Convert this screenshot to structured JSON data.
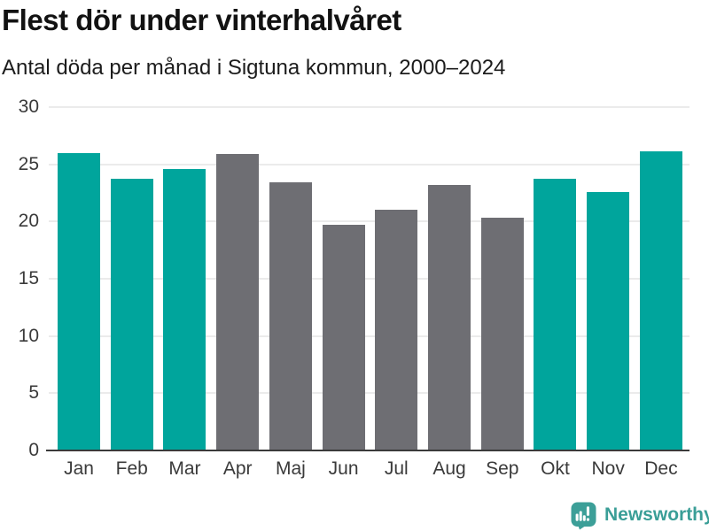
{
  "header": {
    "title": "Flest dör under vinterhalvåret",
    "subtitle": "Antal döda per månad i Sigtuna kommun, 2000–2024"
  },
  "chart_data": {
    "type": "bar",
    "title": "Flest dör under vinterhalvåret",
    "subtitle": "Antal döda per månad i Sigtuna kommun, 2000–2024",
    "categories": [
      "Jan",
      "Feb",
      "Mar",
      "Apr",
      "Maj",
      "Jun",
      "Jul",
      "Aug",
      "Sep",
      "Okt",
      "Nov",
      "Dec"
    ],
    "values": [
      26.0,
      23.7,
      24.6,
      25.9,
      23.4,
      19.7,
      21.0,
      23.2,
      20.3,
      23.7,
      22.6,
      26.1
    ],
    "highlighted": [
      true,
      true,
      true,
      false,
      false,
      false,
      false,
      false,
      false,
      true,
      true,
      true
    ],
    "xlabel": "",
    "ylabel": "",
    "ylim": [
      0,
      30
    ],
    "yticks": [
      0,
      5,
      10,
      15,
      20,
      25,
      30
    ],
    "grid": true,
    "legend_position": "none",
    "colors": {
      "highlight_bar": "#00a59c",
      "base_bar": "#6e6e73",
      "gridline": "#ebebeb",
      "axis_line": "#3a3a3a",
      "tick_text": "#3a3a3a"
    }
  },
  "footer": {
    "brand": "Newsworthy",
    "brand_color": "#3a9e97",
    "icon": "newsworthy-speech-bubble-barchart-icon"
  }
}
